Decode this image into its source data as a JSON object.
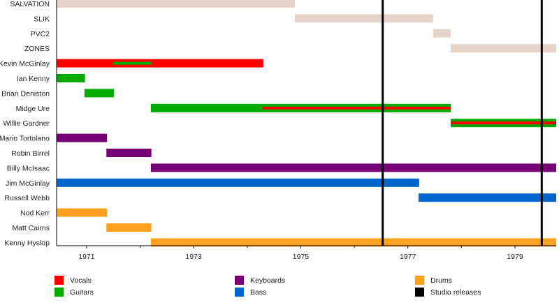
{
  "chart_data": {
    "type": "timeline",
    "title": "",
    "xlim": [
      1970.44,
      1979.77
    ],
    "x_ticks_labeled": [
      1971,
      1973,
      1975,
      1977,
      1979
    ],
    "x_ticks_minor": [
      1972,
      1974,
      1976,
      1978
    ],
    "colors": {
      "Band": "#e6d3c9",
      "Vocals": "#ff0000",
      "Guitars": "#00aa00",
      "Keyboards": "#770077",
      "Bass": "#0066cc",
      "Drums": "#ffa020",
      "Studio releases": "#000000"
    },
    "rows": [
      {
        "label": "SALVATION",
        "bars": [
          {
            "role": "Band",
            "start": 1970.44,
            "end": 1974.89
          }
        ]
      },
      {
        "label": "SLIK",
        "bars": [
          {
            "role": "Band",
            "start": 1974.89,
            "end": 1977.47
          }
        ]
      },
      {
        "label": "PVC2",
        "bars": [
          {
            "role": "Band",
            "start": 1977.47,
            "end": 1977.8
          }
        ]
      },
      {
        "label": "ZONES",
        "bars": [
          {
            "role": "Band",
            "start": 1977.8,
            "end": 1979.77
          }
        ]
      },
      {
        "label": "Kevin McGinlay",
        "bars": [
          {
            "role": "Vocals",
            "start": 1970.44,
            "end": 1974.3
          },
          {
            "role": "Guitars",
            "start": 1971.5,
            "end": 1972.21,
            "overlay": true
          }
        ]
      },
      {
        "label": "Ian Kenny",
        "bars": [
          {
            "role": "Guitars",
            "start": 1970.44,
            "end": 1970.97
          }
        ]
      },
      {
        "label": "Brian Deniston",
        "bars": [
          {
            "role": "Guitars",
            "start": 1970.96,
            "end": 1971.51
          }
        ]
      },
      {
        "label": "Midge Ure",
        "bars": [
          {
            "role": "Guitars",
            "start": 1972.2,
            "end": 1977.8
          },
          {
            "role": "Vocals",
            "start": 1974.29,
            "end": 1977.8,
            "overlay": true
          }
        ]
      },
      {
        "label": "Willie Gardner",
        "bars": [
          {
            "role": "Guitars",
            "start": 1977.8,
            "end": 1979.77
          },
          {
            "role": "Vocals",
            "start": 1977.8,
            "end": 1979.77,
            "overlay": true
          }
        ]
      },
      {
        "label": "Mario Tortolano",
        "bars": [
          {
            "role": "Keyboards",
            "start": 1970.44,
            "end": 1971.38
          }
        ]
      },
      {
        "label": "Robin Birrel",
        "bars": [
          {
            "role": "Keyboards",
            "start": 1971.37,
            "end": 1972.21
          }
        ]
      },
      {
        "label": "Billy McIsaac",
        "bars": [
          {
            "role": "Keyboards",
            "start": 1972.2,
            "end": 1979.77
          }
        ]
      },
      {
        "label": "Jim McGinlay",
        "bars": [
          {
            "role": "Bass",
            "start": 1970.44,
            "end": 1977.21
          }
        ]
      },
      {
        "label": "Russell Webb",
        "bars": [
          {
            "role": "Bass",
            "start": 1977.2,
            "end": 1979.77
          }
        ]
      },
      {
        "label": "Nod Kerr",
        "bars": [
          {
            "role": "Drums",
            "start": 1970.44,
            "end": 1971.38
          }
        ]
      },
      {
        "label": "Matt Cairns",
        "bars": [
          {
            "role": "Drums",
            "start": 1971.37,
            "end": 1972.21
          }
        ]
      },
      {
        "label": "Kenny Hyslop",
        "bars": [
          {
            "role": "Drums",
            "start": 1972.2,
            "end": 1979.77
          }
        ]
      }
    ],
    "studio_releases": [
      1976.53,
      1979.5
    ],
    "legend": {
      "placement": "bottom",
      "entries": [
        "Vocals",
        "Guitars",
        "Keyboards",
        "Bass",
        "Drums",
        "Studio releases"
      ]
    }
  }
}
